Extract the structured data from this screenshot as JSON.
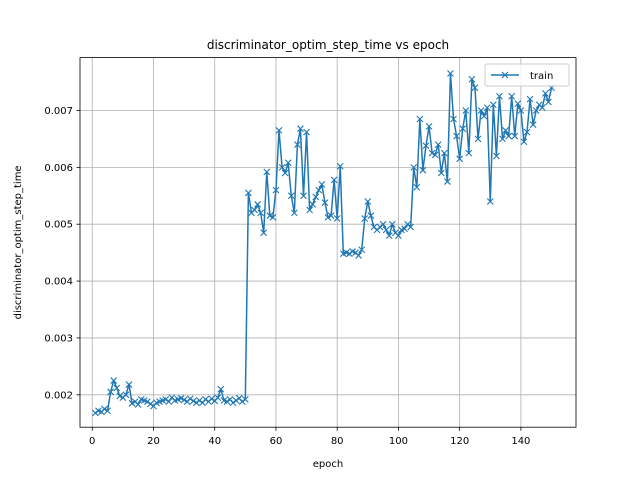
{
  "chart_data": {
    "type": "line",
    "title": "discriminator_optim_step_time vs epoch",
    "xlabel": "epoch",
    "ylabel": "discriminator_optim_step_time",
    "xlim": [
      -4,
      158
    ],
    "ylim": [
      0.00143,
      0.00793
    ],
    "x_ticks": [
      0,
      20,
      40,
      60,
      80,
      100,
      120,
      140
    ],
    "y_ticks": [
      0.002,
      0.003,
      0.004,
      0.005,
      0.006,
      0.007
    ],
    "y_tick_labels": [
      "0.002",
      "0.003",
      "0.004",
      "0.005",
      "0.006",
      "0.007"
    ],
    "grid": true,
    "legend_position": "top-right",
    "marker": "x",
    "color": "#1f77b4",
    "series": [
      {
        "name": "train",
        "x": [
          1,
          2,
          3,
          4,
          5,
          6,
          7,
          8,
          9,
          10,
          11,
          12,
          13,
          14,
          15,
          16,
          17,
          18,
          19,
          20,
          21,
          22,
          23,
          24,
          25,
          26,
          27,
          28,
          29,
          30,
          31,
          32,
          33,
          34,
          35,
          36,
          37,
          38,
          39,
          40,
          41,
          42,
          43,
          44,
          45,
          46,
          47,
          48,
          49,
          50,
          51,
          52,
          53,
          54,
          55,
          56,
          57,
          58,
          59,
          60,
          61,
          62,
          63,
          64,
          65,
          66,
          67,
          68,
          69,
          70,
          71,
          72,
          73,
          74,
          75,
          76,
          77,
          78,
          79,
          80,
          81,
          82,
          83,
          84,
          85,
          86,
          87,
          88,
          89,
          90,
          91,
          92,
          93,
          94,
          95,
          96,
          97,
          98,
          99,
          100,
          101,
          102,
          103,
          104,
          105,
          106,
          107,
          108,
          109,
          110,
          111,
          112,
          113,
          114,
          115,
          116,
          117,
          118,
          119,
          120,
          121,
          122,
          123,
          124,
          125,
          126,
          127,
          128,
          129,
          130,
          131,
          132,
          133,
          134,
          135,
          136,
          137,
          138,
          139,
          140,
          141,
          142,
          143,
          144,
          145,
          146,
          147,
          148,
          149,
          150
        ],
        "y": [
          0.00168,
          0.00172,
          0.0017,
          0.00175,
          0.00172,
          0.00205,
          0.00225,
          0.00212,
          0.00198,
          0.00195,
          0.002,
          0.00218,
          0.00185,
          0.00188,
          0.00183,
          0.00192,
          0.0019,
          0.00188,
          0.00184,
          0.0018,
          0.00186,
          0.00188,
          0.0019,
          0.00192,
          0.00188,
          0.00195,
          0.0019,
          0.00192,
          0.00194,
          0.00191,
          0.00188,
          0.00193,
          0.00189,
          0.00186,
          0.0019,
          0.00186,
          0.00192,
          0.00188,
          0.00193,
          0.00189,
          0.00195,
          0.0021,
          0.0019,
          0.00188,
          0.00192,
          0.00186,
          0.0019,
          0.00194,
          0.00188,
          0.00192,
          0.00555,
          0.0052,
          0.00525,
          0.00535,
          0.0052,
          0.00485,
          0.00592,
          0.00515,
          0.00512,
          0.0056,
          0.00665,
          0.006,
          0.0059,
          0.00608,
          0.0055,
          0.0052,
          0.0064,
          0.00668,
          0.0055,
          0.00662,
          0.00525,
          0.00535,
          0.00548,
          0.0056,
          0.0057,
          0.00538,
          0.00512,
          0.00515,
          0.00578,
          0.0051,
          0.00602,
          0.00448,
          0.0045,
          0.00448,
          0.00452,
          0.0045,
          0.00445,
          0.00455,
          0.0051,
          0.0054,
          0.00515,
          0.00495,
          0.0049,
          0.00495,
          0.005,
          0.0049,
          0.0048,
          0.005,
          0.00485,
          0.0048,
          0.0049,
          0.00492,
          0.005,
          0.00495,
          0.006,
          0.00565,
          0.00685,
          0.00595,
          0.00638,
          0.00672,
          0.00625,
          0.00622,
          0.0064,
          0.0059,
          0.00625,
          0.00575,
          0.00765,
          0.00685,
          0.00655,
          0.00615,
          0.00668,
          0.007,
          0.00625,
          0.00755,
          0.0074,
          0.0065,
          0.007,
          0.0069,
          0.00705,
          0.0054,
          0.0071,
          0.0062,
          0.00725,
          0.0065,
          0.00665,
          0.00655,
          0.00725,
          0.00655,
          0.00712,
          0.007,
          0.00645,
          0.00662,
          0.0072,
          0.00675,
          0.007,
          0.0071,
          0.00705,
          0.0073,
          0.00715,
          0.0074
        ]
      }
    ]
  }
}
